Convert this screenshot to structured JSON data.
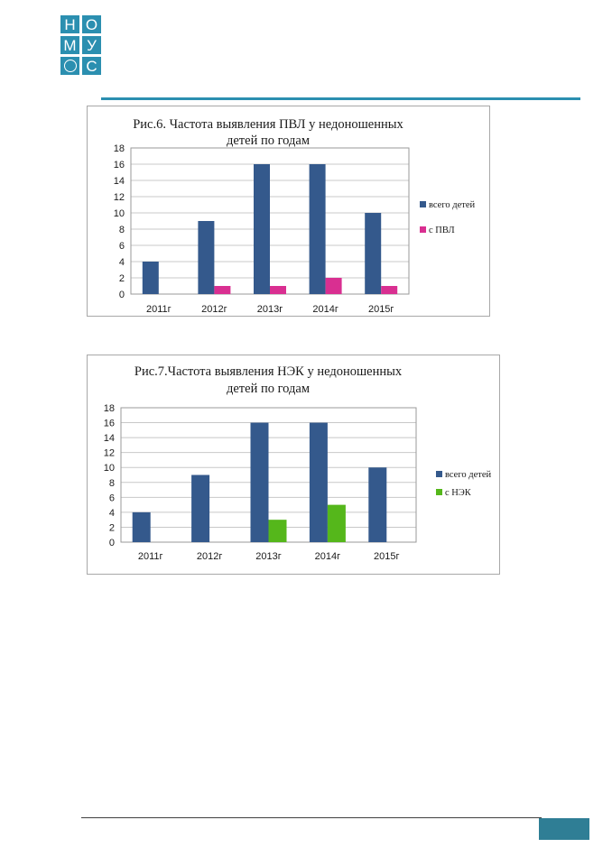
{
  "logo": {
    "letters": [
      "Н",
      "О",
      "М",
      "У",
      "",
      "С"
    ]
  },
  "colors": {
    "brand": "#2b8fb0",
    "series_total": "#34598c",
    "series_pvl": "#d92f91",
    "series_nek": "#55b71b",
    "grid": "#c8c8c8"
  },
  "chart_data": [
    {
      "type": "bar",
      "title": [
        "Рис.6. Частота выявления ПВЛ у недоношенных",
        "детей по годам"
      ],
      "categories": [
        "2011г",
        "2012г",
        "2013г",
        "2014г",
        "2015г"
      ],
      "ylim": [
        0,
        18
      ],
      "yticks": [
        "0",
        "2",
        "4",
        "6",
        "8",
        "10",
        "12",
        "14",
        "16",
        "18"
      ],
      "grid": true,
      "legend": "right",
      "series": [
        {
          "name": "всего детей",
          "values": [
            4,
            9,
            16,
            16,
            10
          ],
          "color": "#34598c"
        },
        {
          "name": "с ПВЛ",
          "values": [
            0,
            1,
            1,
            2,
            1
          ],
          "color": "#d92f91"
        }
      ]
    },
    {
      "type": "bar",
      "title": [
        "Рис.7.Частота выявления  НЭК у недоношенных",
        "детей  по годам"
      ],
      "categories": [
        "2011г",
        "2012г",
        "2013г",
        "2014г",
        "2015г"
      ],
      "ylim": [
        0,
        18
      ],
      "yticks": [
        "0",
        "2",
        "4",
        "6",
        "8",
        "10",
        "12",
        "14",
        "16",
        "18"
      ],
      "grid": true,
      "legend": "right",
      "series": [
        {
          "name": "всего детей",
          "values": [
            4,
            9,
            16,
            16,
            10
          ],
          "color": "#34598c"
        },
        {
          "name": "с НЭК",
          "values": [
            0,
            0,
            3,
            5,
            0
          ],
          "color": "#55b71b"
        }
      ]
    }
  ]
}
